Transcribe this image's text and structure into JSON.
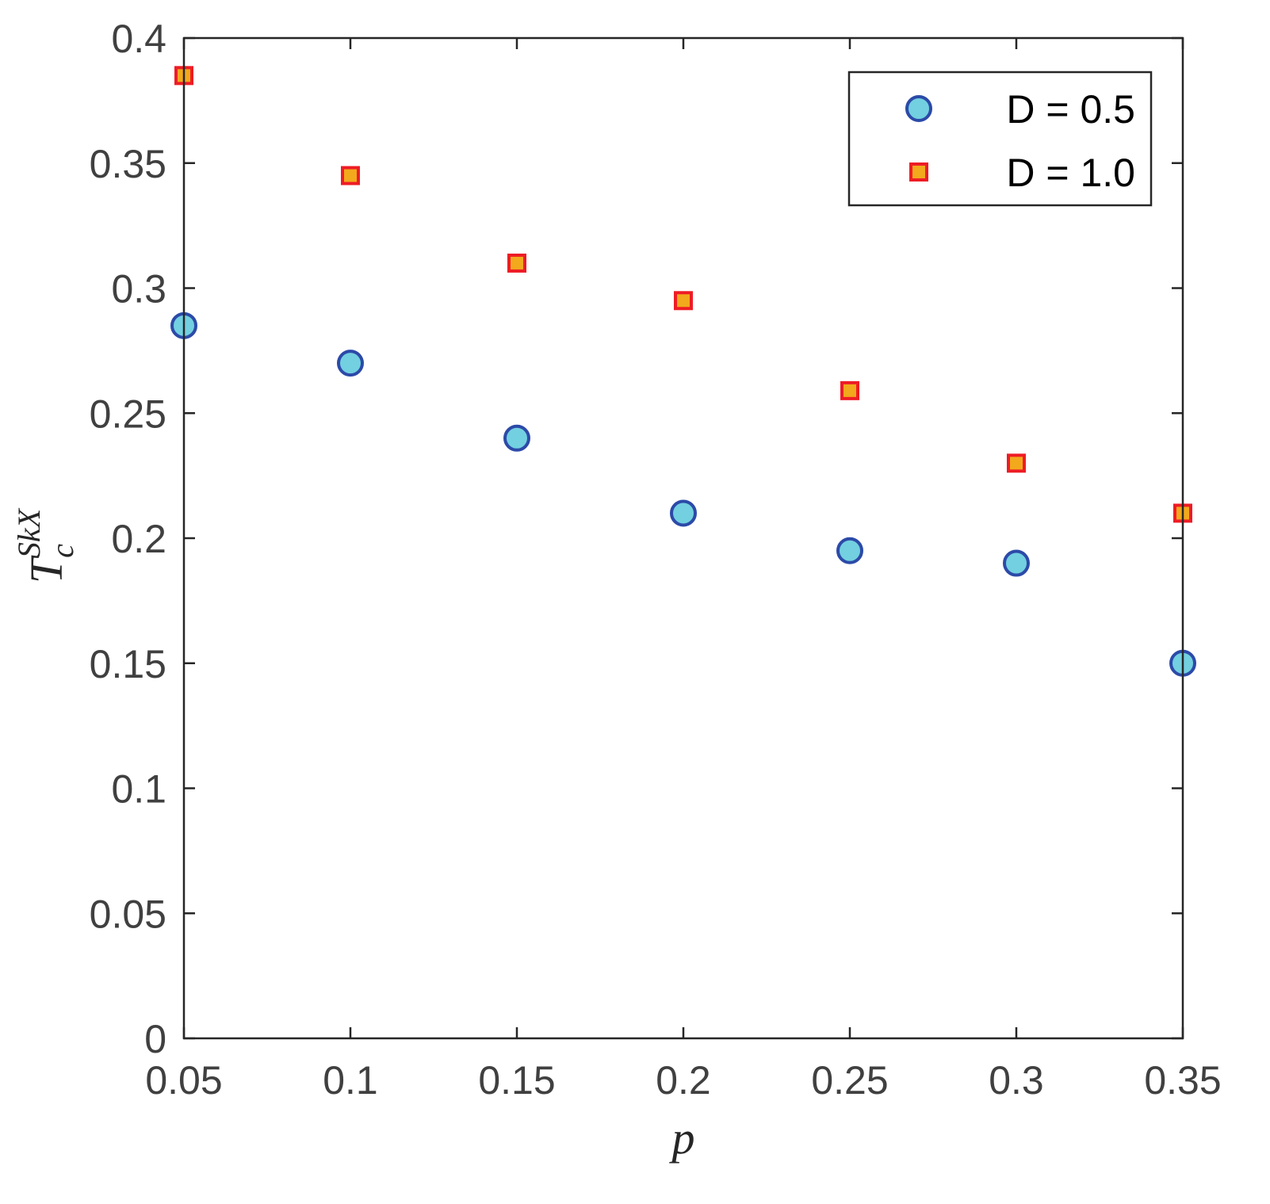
{
  "chart_data": {
    "type": "scatter",
    "title": "",
    "xlabel": "p",
    "ylabel": {
      "main": "T",
      "subscript": "c",
      "superscript": "SkX"
    },
    "xlim": [
      0.05,
      0.35
    ],
    "ylim": [
      0,
      0.4
    ],
    "xticks": [
      "0.05",
      "0.1",
      "0.15",
      "0.2",
      "0.25",
      "0.3",
      "0.35"
    ],
    "yticks": [
      "0",
      "0.05",
      "0.1",
      "0.15",
      "0.2",
      "0.25",
      "0.3",
      "0.35",
      "0.4"
    ],
    "grid": false,
    "legend_position": "top-right",
    "x": [
      0.05,
      0.1,
      0.15,
      0.2,
      0.25,
      0.3,
      0.35
    ],
    "series": [
      {
        "name": "D = 0.5",
        "marker": "circle",
        "fill": "#72d0e0",
        "edge": "#2c4aa8",
        "values": [
          0.285,
          0.27,
          0.24,
          0.21,
          0.195,
          0.19,
          0.15
        ]
      },
      {
        "name": "D = 1.0",
        "marker": "square",
        "fill": "#f2a91c",
        "edge": "#ee1c25",
        "values": [
          0.385,
          0.345,
          0.31,
          0.295,
          0.259,
          0.23,
          0.21
        ]
      }
    ]
  }
}
